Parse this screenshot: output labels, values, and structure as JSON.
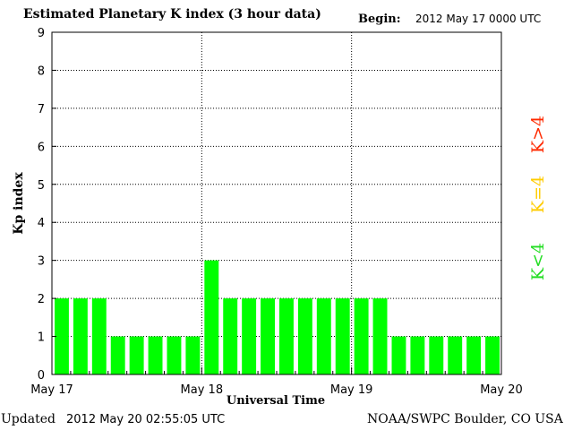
{
  "header": {
    "title": "Estimated Planetary K index (3 hour data)",
    "begin_label": "Begin:",
    "begin_value": "2012 May 17 0000 UTC"
  },
  "footer": {
    "updated_label": "Updated",
    "updated_value": "2012 May 20 02:55:05 UTC",
    "source": "NOAA/SWPC Boulder, CO USA"
  },
  "legend": {
    "items": [
      {
        "label": "K>4",
        "color": "#ff2a00"
      },
      {
        "label": "K=4",
        "color": "#ffcc00"
      },
      {
        "label": "K<4",
        "color": "#22dd22"
      }
    ]
  },
  "chart_data": {
    "type": "bar",
    "title": "Estimated Planetary K index (3 hour data)",
    "xlabel": "Universal Time",
    "ylabel": "Kp index",
    "ylim": [
      0,
      9
    ],
    "yticks": [
      "0",
      "1",
      "2",
      "3",
      "4",
      "5",
      "6",
      "7",
      "8",
      "9"
    ],
    "xtick_labels": [
      "May 17",
      "May 18",
      "May 19",
      "May 20"
    ],
    "grid": true,
    "bar_color": "#00ff00",
    "values": [
      2,
      2,
      2,
      1,
      1,
      1,
      1,
      1,
      3,
      2,
      2,
      2,
      2,
      2,
      2,
      2,
      2,
      2,
      1,
      1,
      1,
      1,
      1,
      1
    ]
  }
}
